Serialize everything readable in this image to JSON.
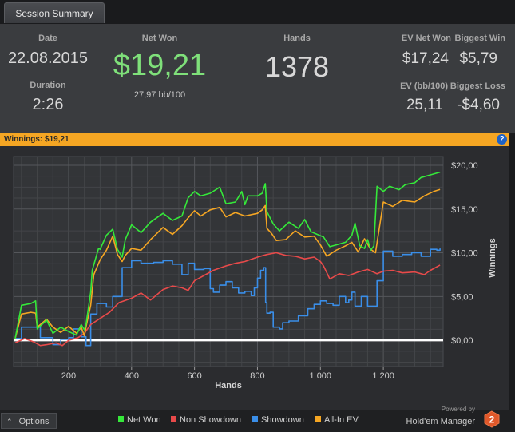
{
  "tab": {
    "label": "Session Summary"
  },
  "summary": {
    "date_label": "Date",
    "date_value": "22.08.2015",
    "duration_label": "Duration",
    "duration_value": "2:26",
    "netwon_label": "Net Won",
    "netwon_value": "$19,21",
    "netwon_sub": "27,97 bb/100",
    "hands_label": "Hands",
    "hands_value": "1378",
    "ev_net_won_label": "EV Net Won",
    "ev_net_won_value": "$17,24",
    "biggest_win_label": "Biggest Win",
    "biggest_win_value": "$5,79",
    "ev_bb_label": "EV (bb/100)",
    "ev_bb_value": "25,11",
    "biggest_loss_label": "Biggest Loss",
    "biggest_loss_value": "-$4,60"
  },
  "winnings_bar": {
    "label": "Winnings:",
    "value": "$19,21",
    "help": "?"
  },
  "chart_data": {
    "type": "line",
    "xlabel": "Hands",
    "ylabel": "Winnings",
    "xlim": [
      25,
      1390
    ],
    "ylim": [
      -3.0,
      21.0
    ],
    "x_ticks": [
      200,
      400,
      600,
      800,
      1000,
      1200
    ],
    "x_tick_labels": [
      "200",
      "400",
      "600",
      "800",
      "1 000",
      "1 200"
    ],
    "y_ticks": [
      0,
      5,
      10,
      15,
      20
    ],
    "y_tick_labels": [
      "$0,00",
      "$5,00",
      "$10,00",
      "$15,00",
      "$20,00"
    ],
    "grid": true,
    "colors": {
      "Net Won": "#35e83a",
      "Non Showdown": "#e84a4a",
      "Showdown": "#3a8ee8",
      "All-In EV": "#f5a623"
    },
    "series": [
      {
        "name": "Net Won",
        "x": [
          30,
          50,
          80,
          95,
          100,
          130,
          150,
          175,
          200,
          225,
          240,
          250,
          255,
          270,
          275,
          295,
          300,
          320,
          340,
          355,
          370,
          380,
          400,
          430,
          460,
          500,
          530,
          560,
          580,
          600,
          620,
          650,
          680,
          700,
          730,
          750,
          760,
          770,
          800,
          815,
          825,
          830,
          840,
          850,
          870,
          900,
          930,
          950,
          970,
          990,
          1010,
          1030,
          1060,
          1080,
          1100,
          1110,
          1125,
          1140,
          1150,
          1160,
          1170,
          1180,
          1200,
          1220,
          1250,
          1270,
          1300,
          1320,
          1350,
          1380
        ],
        "y": [
          0.2,
          4.0,
          4.2,
          4.5,
          1.3,
          2.3,
          0.8,
          1.5,
          1.0,
          0.6,
          1.8,
          1.2,
          1.8,
          5.5,
          8.0,
          10.5,
          10.4,
          12.0,
          12.7,
          10.4,
          9.5,
          11.5,
          13.2,
          12.3,
          13.5,
          14.5,
          13.7,
          14.2,
          16.3,
          17.0,
          16.5,
          16.8,
          17.5,
          15.6,
          15.8,
          17.0,
          15.5,
          16.5,
          16.5,
          16.8,
          17.9,
          14.7,
          14.0,
          13.3,
          12.5,
          13.5,
          12.8,
          13.8,
          12.4,
          12.1,
          11.8,
          10.7,
          11.0,
          11.2,
          12.0,
          13.4,
          10.8,
          10.5,
          11.5,
          10.3,
          10.8,
          17.6,
          17.0,
          17.6,
          17.2,
          17.8,
          18.0,
          18.6,
          18.9,
          19.21
        ]
      },
      {
        "name": "Non Showdown",
        "x": [
          30,
          60,
          90,
          110,
          130,
          160,
          180,
          200,
          230,
          250,
          270,
          300,
          330,
          360,
          400,
          430,
          460,
          500,
          530,
          560,
          580,
          600,
          630,
          660,
          700,
          730,
          760,
          800,
          830,
          860,
          890,
          920,
          950,
          980,
          1000,
          1010,
          1030,
          1060,
          1090,
          1120,
          1150,
          1180,
          1200,
          1230,
          1260,
          1300,
          1330,
          1350,
          1380
        ],
        "y": [
          -0.3,
          0.2,
          -0.2,
          -0.6,
          -0.5,
          -0.3,
          -0.6,
          0.0,
          0.3,
          0.8,
          1.8,
          2.5,
          3.2,
          4.3,
          4.8,
          5.4,
          4.6,
          5.8,
          6.2,
          6.0,
          5.7,
          6.8,
          7.4,
          8.0,
          8.5,
          8.8,
          9.0,
          9.5,
          9.8,
          10.0,
          9.7,
          9.6,
          9.3,
          9.5,
          9.0,
          8.5,
          7.0,
          7.6,
          7.4,
          7.8,
          8.1,
          7.6,
          7.9,
          8.0,
          7.7,
          7.8,
          7.5,
          8.0,
          8.6
        ]
      },
      {
        "name": "Showdown",
        "x": [
          30,
          50,
          80,
          110,
          150,
          175,
          200,
          215,
          240,
          255,
          270,
          290,
          320,
          340,
          370,
          400,
          430,
          470,
          500,
          530,
          560,
          580,
          600,
          630,
          650,
          660,
          680,
          700,
          720,
          740,
          760,
          780,
          790,
          800,
          810,
          820,
          826,
          830,
          840,
          850,
          870,
          880,
          900,
          930,
          960,
          980,
          1000,
          1020,
          1040,
          1060,
          1080,
          1090,
          1100,
          1110,
          1130,
          1150,
          1180,
          1200,
          1230,
          1260,
          1290,
          1320,
          1350,
          1370,
          1380
        ],
        "y": [
          0.2,
          1.5,
          1.5,
          0.3,
          -0.5,
          0.1,
          0.3,
          1.3,
          0.4,
          -0.6,
          3.0,
          4.2,
          3.8,
          5.0,
          8.3,
          9.1,
          8.8,
          8.9,
          9.1,
          8.7,
          7.5,
          8.8,
          8.1,
          8.2,
          5.9,
          5.5,
          6.3,
          6.7,
          6.0,
          5.4,
          5.6,
          5.1,
          6.0,
          7.1,
          8.0,
          8.3,
          4.3,
          3.1,
          3.2,
          1.5,
          1.3,
          2.0,
          2.2,
          2.8,
          3.6,
          4.1,
          4.5,
          4.2,
          4.0,
          5.0,
          4.3,
          4.6,
          5.5,
          3.9,
          5.0,
          3.9,
          6.8,
          10.2,
          9.6,
          9.8,
          10.0,
          9.6,
          10.4,
          10.3,
          10.5
        ]
      },
      {
        "name": "All-In EV",
        "x": [
          30,
          50,
          80,
          95,
          100,
          130,
          150,
          175,
          200,
          225,
          240,
          250,
          255,
          270,
          280,
          300,
          320,
          340,
          355,
          370,
          380,
          400,
          430,
          460,
          500,
          530,
          560,
          580,
          600,
          620,
          650,
          680,
          700,
          730,
          760,
          800,
          815,
          825,
          830,
          845,
          860,
          890,
          920,
          950,
          980,
          1000,
          1020,
          1050,
          1080,
          1100,
          1120,
          1140,
          1160,
          1175,
          1200,
          1230,
          1260,
          1300,
          1330,
          1360,
          1380
        ],
        "y": [
          0.2,
          3.0,
          3.2,
          3.1,
          1.5,
          2.4,
          1.5,
          0.9,
          1.6,
          0.8,
          1.5,
          0.5,
          1.5,
          4.0,
          7.5,
          9.2,
          10.3,
          11.9,
          9.8,
          9.0,
          9.7,
          10.5,
          10.3,
          11.5,
          12.9,
          12.1,
          13.1,
          14.0,
          14.8,
          14.2,
          14.9,
          15.2,
          14.1,
          14.6,
          14.2,
          14.5,
          14.9,
          15.4,
          12.8,
          12.2,
          11.4,
          11.5,
          12.5,
          11.8,
          11.9,
          10.9,
          9.6,
          10.3,
          10.8,
          11.2,
          10.1,
          11.6,
          10.4,
          10.0,
          15.8,
          15.3,
          16.0,
          15.8,
          16.5,
          17.0,
          17.24
        ]
      }
    ]
  },
  "footer": {
    "options_label": "Options",
    "legend": [
      {
        "name": "Net Won",
        "color": "#35e83a"
      },
      {
        "name": "Non Showdown",
        "color": "#e84a4a"
      },
      {
        "name": "Showdown",
        "color": "#3a8ee8"
      },
      {
        "name": "All-In EV",
        "color": "#f5a623"
      }
    ],
    "brand_powered": "Powered by",
    "brand_name": "Hold'em Manager",
    "brand_badge": "2"
  }
}
